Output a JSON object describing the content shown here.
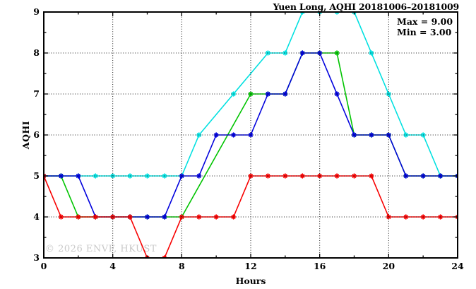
{
  "chart_data": {
    "type": "line",
    "title": "Yuen Long, AQHI 20181006–20181009",
    "xlabel": "Hours",
    "ylabel": "AQHI",
    "xlim": [
      0,
      24
    ],
    "ylim": [
      3,
      9
    ],
    "x_major_ticks": [
      0,
      4,
      8,
      12,
      16,
      20,
      24
    ],
    "x_minor_ticks": [
      2,
      6,
      10,
      14,
      18,
      22
    ],
    "y_major_ticks": [
      3,
      4,
      5,
      6,
      7,
      8,
      9
    ],
    "y_minor_ticks": [
      3.5,
      4.5,
      5.5,
      6.5,
      7.5,
      8.5
    ],
    "grid": {
      "style": "dotted",
      "vertical_at": [
        4,
        8,
        12,
        16,
        20
      ],
      "horizontal_at": [
        4,
        5,
        6,
        7,
        8
      ]
    },
    "annotation": {
      "max_label": "Max = 9.00",
      "min_label": "Min = 3.00"
    },
    "watermark": "© 2026 ENVF, HKUST",
    "marker": "asterisk",
    "legend": "none",
    "series": [
      {
        "name": "cyan",
        "color": "#00e0e0",
        "points": [
          [
            0,
            5
          ],
          [
            1,
            5
          ],
          [
            2,
            5
          ],
          [
            3,
            5
          ],
          [
            4,
            5
          ],
          [
            5,
            5
          ],
          [
            6,
            5
          ],
          [
            7,
            5
          ],
          [
            8,
            5
          ],
          [
            9,
            6
          ],
          [
            11,
            7
          ],
          [
            13,
            8
          ],
          [
            14,
            8
          ],
          [
            15,
            9
          ],
          [
            16,
            9
          ],
          [
            17,
            9
          ],
          [
            18,
            9
          ],
          [
            19,
            8
          ],
          [
            20,
            7
          ],
          [
            21,
            6
          ],
          [
            22,
            6
          ],
          [
            23,
            5
          ],
          [
            24,
            5
          ]
        ]
      },
      {
        "name": "green",
        "color": "#00c400",
        "points": [
          [
            0,
            5
          ],
          [
            1,
            5
          ],
          [
            2,
            4
          ],
          [
            3,
            4
          ],
          [
            4,
            4
          ],
          [
            5,
            4
          ],
          [
            6,
            4
          ],
          [
            7,
            4
          ],
          [
            8,
            4
          ],
          [
            12,
            7
          ],
          [
            13,
            7
          ],
          [
            14,
            7
          ],
          [
            15,
            8
          ],
          [
            16,
            8
          ],
          [
            17,
            8
          ],
          [
            18,
            6
          ],
          [
            19,
            6
          ],
          [
            20,
            6
          ],
          [
            21,
            5
          ],
          [
            22,
            5
          ],
          [
            23,
            5
          ],
          [
            24,
            5
          ]
        ]
      },
      {
        "name": "blue",
        "color": "#0000dd",
        "points": [
          [
            0,
            5
          ],
          [
            1,
            5
          ],
          [
            2,
            5
          ],
          [
            3,
            4
          ],
          [
            4,
            4
          ],
          [
            5,
            4
          ],
          [
            6,
            4
          ],
          [
            7,
            4
          ],
          [
            8,
            5
          ],
          [
            9,
            5
          ],
          [
            10,
            6
          ],
          [
            11,
            6
          ],
          [
            12,
            6
          ],
          [
            13,
            7
          ],
          [
            14,
            7
          ],
          [
            15,
            8
          ],
          [
            16,
            8
          ],
          [
            17,
            7
          ],
          [
            18,
            6
          ],
          [
            19,
            6
          ],
          [
            20,
            6
          ],
          [
            21,
            5
          ],
          [
            22,
            5
          ],
          [
            23,
            5
          ],
          [
            24,
            5
          ]
        ]
      },
      {
        "name": "red",
        "color": "#f80000",
        "points": [
          [
            0,
            5
          ],
          [
            1,
            4
          ],
          [
            2,
            4
          ],
          [
            3,
            4
          ],
          [
            4,
            4
          ],
          [
            5,
            4
          ],
          [
            6,
            3
          ],
          [
            7,
            3
          ],
          [
            8,
            4
          ],
          [
            9,
            4
          ],
          [
            10,
            4
          ],
          [
            11,
            4
          ],
          [
            12,
            5
          ],
          [
            13,
            5
          ],
          [
            14,
            5
          ],
          [
            15,
            5
          ],
          [
            16,
            5
          ],
          [
            17,
            5
          ],
          [
            18,
            5
          ],
          [
            19,
            5
          ],
          [
            20,
            4
          ],
          [
            21,
            4
          ],
          [
            22,
            4
          ],
          [
            23,
            4
          ],
          [
            24,
            4
          ]
        ]
      }
    ]
  }
}
